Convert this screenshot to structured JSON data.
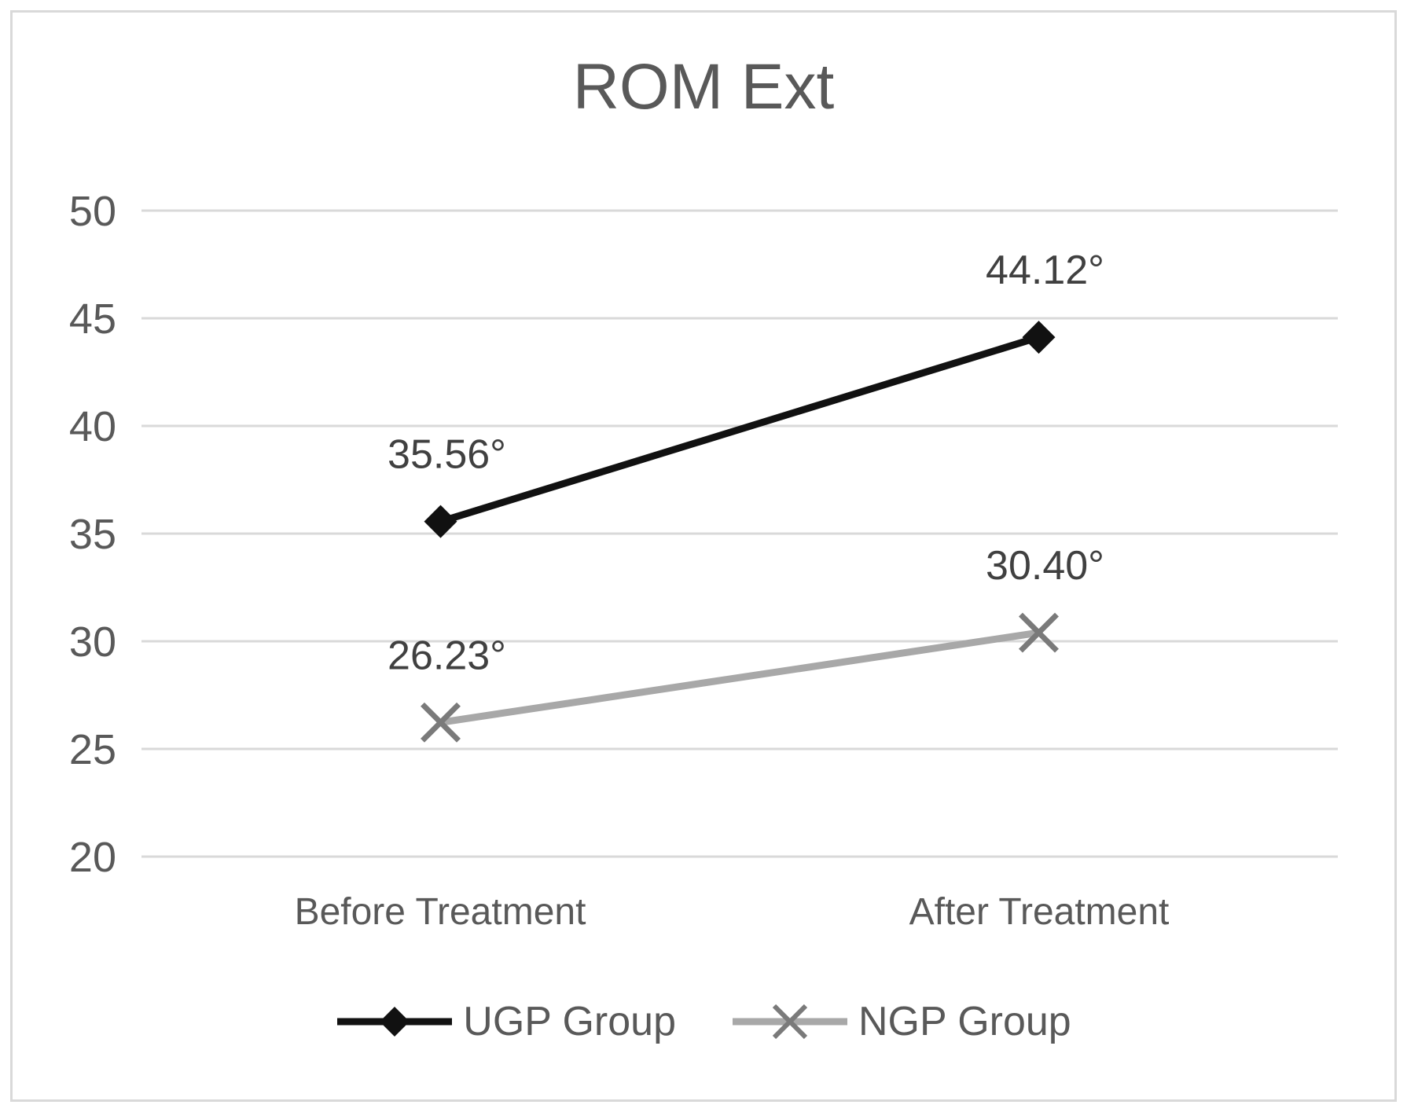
{
  "title": "ROM Ext",
  "colors": {
    "background": "#ffffff",
    "border": "#d9d9d9",
    "gridline": "#d9d9d9",
    "text": "#595959",
    "data_label_text": "#404040",
    "ugp": "#111111",
    "ngp_line": "#a8a8a8",
    "ngp_marker": "#7a7a7a"
  },
  "chart_data": {
    "type": "line",
    "title": "ROM Ext",
    "categories": [
      "Before Treatment",
      "After Treatment"
    ],
    "series": [
      {
        "name": "UGP Group",
        "marker": "diamond",
        "color": "#111111",
        "values": [
          35.56,
          44.12
        ],
        "data_labels": [
          "35.56°",
          "44.12°"
        ]
      },
      {
        "name": "NGP Group",
        "marker": "x",
        "line_color": "#a8a8a8",
        "marker_color": "#7a7a7a",
        "values": [
          26.23,
          30.4
        ],
        "data_labels": [
          "26.23°",
          "30.40°"
        ]
      }
    ],
    "yticks": [
      20,
      25,
      30,
      35,
      40,
      45,
      50
    ],
    "ylim": [
      20,
      50
    ],
    "xlabel": "",
    "ylabel": "",
    "grid": true,
    "legend_position": "bottom"
  }
}
